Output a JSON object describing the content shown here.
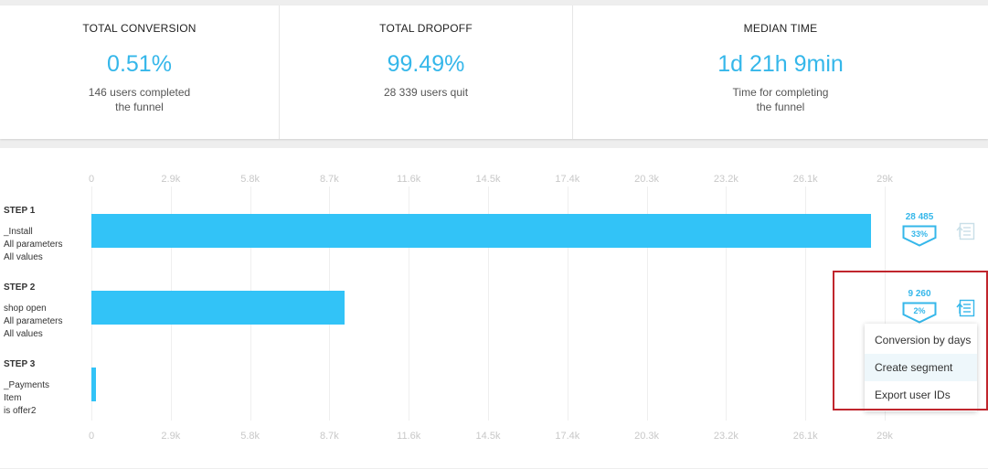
{
  "kpis": [
    {
      "label": "TOTAL CONVERSION",
      "value": "0.51%",
      "desc_line1": "146 users completed",
      "desc_line2": "the funnel"
    },
    {
      "label": "TOTAL DROPOFF",
      "value": "99.49%",
      "desc_line1": "28 339 users quit",
      "desc_line2": ""
    },
    {
      "label": "MEDIAN TIME",
      "value": "1d 21h 9min",
      "desc_line1": "Time for completing",
      "desc_line2": "the funnel"
    }
  ],
  "chart_data": {
    "type": "bar",
    "orientation": "horizontal",
    "x_ticks": [
      "0",
      "2.9k",
      "5.8k",
      "8.7k",
      "11.6k",
      "14.5k",
      "17.4k",
      "20.3k",
      "23.2k",
      "26.1k",
      "29k"
    ],
    "xlim": [
      0,
      29000
    ],
    "grid": true,
    "categories": [
      "STEP 1",
      "STEP 2",
      "STEP 3"
    ],
    "values": [
      28485,
      9260,
      146
    ]
  },
  "steps": [
    {
      "title": "STEP 1",
      "line1": "_Install",
      "line2": "All parameters",
      "line3": "All values",
      "count": "28 485",
      "percent": "33%"
    },
    {
      "title": "STEP 2",
      "line1": "shop open",
      "line2": "All parameters",
      "line3": "All values",
      "count": "9 260",
      "percent": "2%"
    },
    {
      "title": "STEP 3",
      "line1": "_Payments",
      "line2": "Item",
      "line3": "is offer2",
      "count": "",
      "percent": ""
    }
  ],
  "menu": {
    "items": [
      "Conversion by days",
      "Create segment",
      "Export user IDs"
    ],
    "hovered_index": 1
  },
  "colors": {
    "accent": "#35b7ea",
    "bar": "#32c3f7",
    "highlight": "#c0262d"
  }
}
